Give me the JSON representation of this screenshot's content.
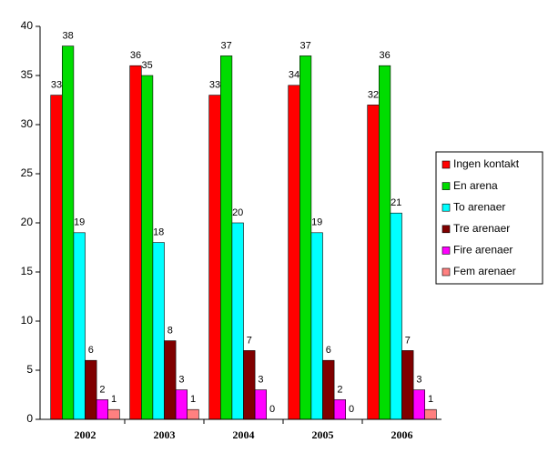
{
  "chart_data": {
    "type": "bar",
    "categories": [
      "2002",
      "2003",
      "2004",
      "2005",
      "2006"
    ],
    "series": [
      {
        "name": "Ingen kontakt",
        "color": "#ff0000",
        "values": [
          33,
          36,
          33,
          34,
          32
        ]
      },
      {
        "name": "En arena",
        "color": "#00dd00",
        "values": [
          38,
          35,
          37,
          37,
          36
        ]
      },
      {
        "name": "To arenaer",
        "color": "#00ffff",
        "values": [
          19,
          18,
          20,
          19,
          21
        ]
      },
      {
        "name": "Tre arenaer",
        "color": "#800000",
        "values": [
          6,
          8,
          7,
          6,
          7
        ]
      },
      {
        "name": "Fire arenaer",
        "color": "#ff00ff",
        "values": [
          2,
          3,
          3,
          2,
          3
        ]
      },
      {
        "name": "Fem arenaer",
        "color": "#ff8080",
        "values": [
          1,
          1,
          0,
          0,
          1
        ]
      }
    ],
    "ylim": [
      0,
      40
    ],
    "yticks": [
      0,
      5,
      10,
      15,
      20,
      25,
      30,
      35,
      40
    ],
    "legend": "right"
  }
}
